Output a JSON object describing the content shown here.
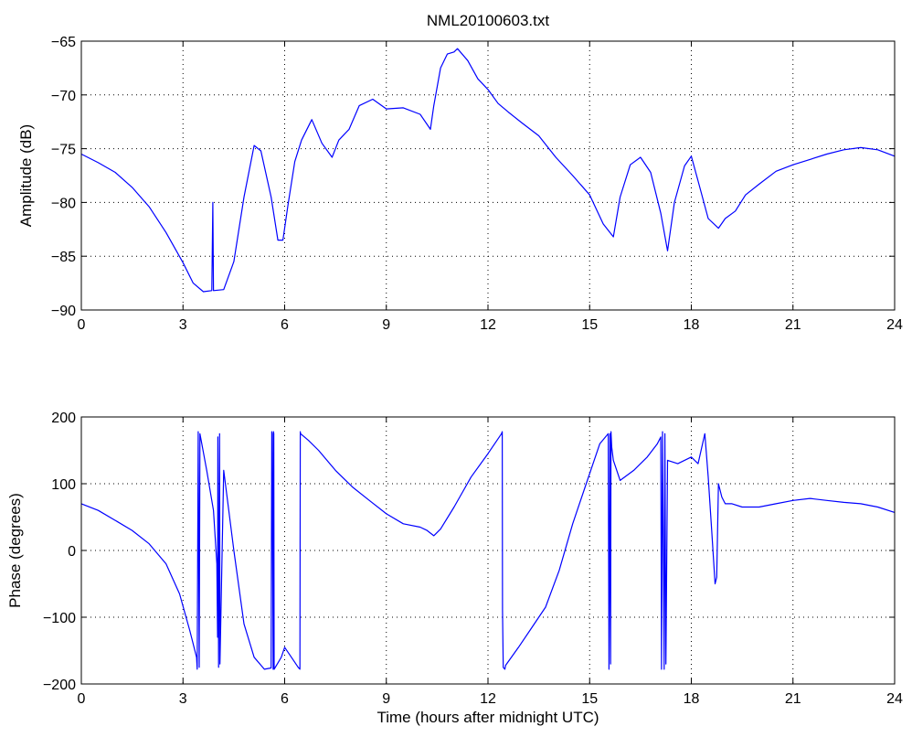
{
  "figure_title": "NML20100603.txt",
  "colors": {
    "line": "#0000ff",
    "axes": "#000000",
    "grid": "#000000",
    "background": "#ffffff"
  },
  "chart_data": [
    {
      "type": "line",
      "title": "NML20100603.txt",
      "xlabel": "",
      "ylabel": "Amplitude (dB)",
      "xlim": [
        0,
        24
      ],
      "ylim": [
        -90,
        -65
      ],
      "xticks": [
        0,
        3,
        6,
        9,
        12,
        15,
        18,
        21,
        24
      ],
      "yticks": [
        -90,
        -85,
        -80,
        -75,
        -70,
        -65
      ],
      "xtick_labels": [
        "0",
        "3",
        "6",
        "9",
        "12",
        "15",
        "18",
        "21",
        "24"
      ],
      "ytick_labels": [
        "−90",
        "−85",
        "−80",
        "−75",
        "−70",
        "−65"
      ],
      "grid": true,
      "series": [
        {
          "x": [
            0,
            0.5,
            1,
            1.5,
            2,
            2.5,
            3,
            3.3,
            3.6,
            3.85,
            3.88,
            3.9,
            4.2,
            4.5,
            4.8,
            5.1,
            5.3,
            5.6,
            5.8,
            5.95,
            6.1,
            6.3,
            6.5,
            6.8,
            7.1,
            7.4,
            7.6,
            7.9,
            8.2,
            8.6,
            9,
            9.5,
            10,
            10.3,
            10.4,
            10.6,
            10.8,
            11,
            11.1,
            11.4,
            11.7,
            12,
            12.3,
            12.6,
            13,
            13.5,
            14,
            14.5,
            15,
            15.4,
            15.7,
            15.9,
            16.2,
            16.5,
            16.8,
            17.1,
            17.3,
            17.5,
            17.8,
            18,
            18.2,
            18.5,
            18.8,
            19,
            19.3,
            19.6,
            20,
            20.5,
            21,
            21.5,
            22,
            22.5,
            23,
            23.5,
            24
          ],
          "y": [
            -75.5,
            -76.3,
            -77.2,
            -78.6,
            -80.4,
            -82.8,
            -85.6,
            -87.5,
            -88.3,
            -88.2,
            -80,
            -88.2,
            -88.1,
            -85.5,
            -79.5,
            -74.7,
            -75.2,
            -79.5,
            -83.5,
            -83.5,
            -80.2,
            -76.2,
            -74.2,
            -72.3,
            -74.5,
            -75.8,
            -74.2,
            -73.2,
            -71,
            -70.4,
            -71.3,
            -71.2,
            -71.8,
            -73.2,
            -71,
            -67.5,
            -66.2,
            -66,
            -65.7,
            -66.8,
            -68.5,
            -69.5,
            -70.8,
            -71.6,
            -72.6,
            -73.8,
            -75.8,
            -77.5,
            -79.3,
            -82,
            -83.2,
            -79.5,
            -76.5,
            -75.8,
            -77.2,
            -81,
            -84.5,
            -80,
            -76.6,
            -75.7,
            -78,
            -81.5,
            -82.4,
            -81.5,
            -80.8,
            -79.3,
            -78.3,
            -77.1,
            -76.5,
            -76,
            -75.5,
            -75.1,
            -74.9,
            -75.1,
            -75.7
          ]
        }
      ]
    },
    {
      "type": "line",
      "title": "",
      "xlabel": "Time (hours after midnight UTC)",
      "ylabel": "Phase (degrees)",
      "xlim": [
        0,
        24
      ],
      "ylim": [
        -200,
        200
      ],
      "xticks": [
        0,
        3,
        6,
        9,
        12,
        15,
        18,
        21,
        24
      ],
      "yticks": [
        -200,
        -100,
        0,
        100,
        200
      ],
      "xtick_labels": [
        "0",
        "3",
        "6",
        "9",
        "12",
        "15",
        "18",
        "21",
        "24"
      ],
      "ytick_labels": [
        "−200",
        "−100",
        "0",
        "100",
        "200"
      ],
      "grid": true,
      "series": [
        {
          "x": [
            0,
            0.5,
            1,
            1.5,
            2,
            2.5,
            2.9,
            3.2,
            3.4,
            3.42,
            3.45,
            3.48,
            3.5,
            3.7,
            3.9,
            4.0,
            4.02,
            4.03,
            4.05,
            4.08,
            4.09,
            4.2,
            4.5,
            4.8,
            5.1,
            5.4,
            5.6,
            5.62,
            5.63,
            5.66,
            5.67,
            5.68,
            5.69,
            5.9,
            6.0,
            6.2,
            6.4,
            6.45,
            6.46,
            6.47,
            6.7,
            7,
            7.5,
            8,
            8.5,
            9,
            9.5,
            10,
            10.2,
            10.4,
            10.6,
            11,
            11.5,
            12,
            12.4,
            12.42,
            12.43,
            12.45,
            12.5,
            12.52,
            12.9,
            13.3,
            13.7,
            14.1,
            14.5,
            14.9,
            15.3,
            15.55,
            15.57,
            15.6,
            15.62,
            15.63,
            15.65,
            15.7,
            15.9,
            16.3,
            16.7,
            17,
            17.1,
            17.12,
            17.15,
            17.2,
            17.22,
            17.25,
            17.3,
            17.6,
            18,
            18.2,
            18.4,
            18.5,
            18.6,
            18.7,
            18.75,
            18.8,
            18.9,
            19.0,
            19.2,
            19.5,
            20,
            20.5,
            21,
            21.5,
            22,
            22.5,
            23,
            23.5,
            24
          ],
          "y": [
            70,
            60,
            45,
            30,
            10,
            -20,
            -65,
            -120,
            -160,
            -178,
            178,
            -175,
            175,
            120,
            60,
            -20,
            -130,
            170,
            -175,
            175,
            -170,
            120,
            0,
            -110,
            -160,
            -178,
            -176,
            178,
            175,
            -178,
            178,
            175,
            -178,
            -160,
            -145,
            -160,
            -175,
            -178,
            178,
            175,
            165,
            150,
            120,
            95,
            75,
            55,
            40,
            35,
            30,
            22,
            32,
            65,
            110,
            145,
            175,
            178,
            -90,
            -175,
            -178,
            -172,
            -145,
            -115,
            -85,
            -30,
            40,
            100,
            160,
            175,
            -178,
            175,
            -170,
            178,
            155,
            135,
            105,
            120,
            140,
            160,
            170,
            -178,
            178,
            -178,
            175,
            -170,
            135,
            130,
            140,
            130,
            175,
            110,
            30,
            -50,
            -40,
            100,
            80,
            70,
            70,
            65,
            65,
            70,
            75,
            78,
            75,
            72,
            70,
            65,
            57
          ]
        }
      ]
    }
  ]
}
